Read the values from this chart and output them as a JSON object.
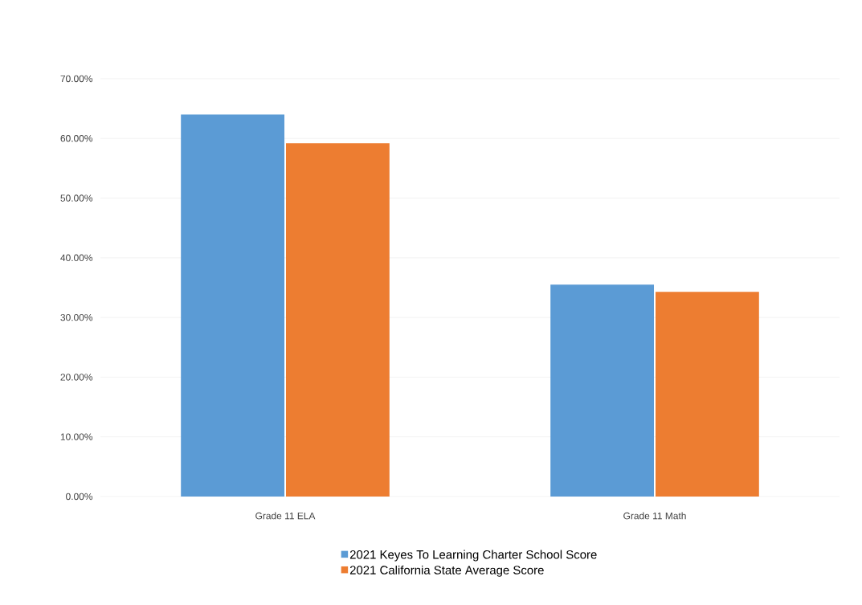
{
  "chart_data": {
    "type": "bar",
    "categories": [
      "Grade 11 ELA",
      "Grade 11 Math"
    ],
    "series": [
      {
        "name": "2021 Keyes To Learning Charter School Score",
        "color": "#5b9bd5",
        "values": [
          64.0,
          35.5
        ]
      },
      {
        "name": "2021 California State Average Score",
        "color": "#ed7d31",
        "values": [
          59.2,
          34.3
        ]
      }
    ],
    "ylim": [
      0,
      70
    ],
    "yticks": [
      {
        "value": 0,
        "label": "0.00%"
      },
      {
        "value": 10,
        "label": "10.00%"
      },
      {
        "value": 20,
        "label": "20.00%"
      },
      {
        "value": 30,
        "label": "30.00%"
      },
      {
        "value": 40,
        "label": "40.00%"
      },
      {
        "value": 50,
        "label": "50.00%"
      },
      {
        "value": 60,
        "label": "60.00%"
      },
      {
        "value": 70,
        "label": "70.00%"
      }
    ],
    "grid": "y",
    "legend": "bottom"
  }
}
